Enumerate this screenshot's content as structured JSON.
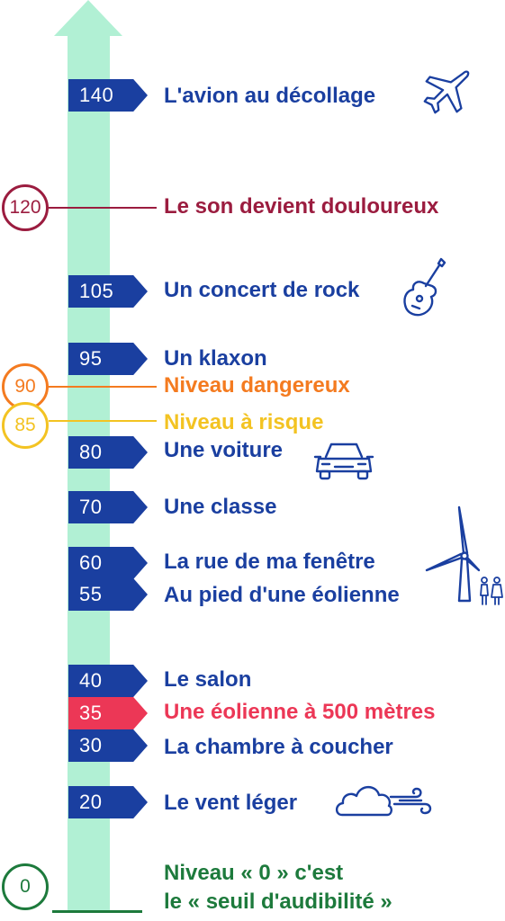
{
  "colors": {
    "arrow": "#b1f0d4",
    "blue": "#1a3fa0",
    "red": "#ec3756",
    "maroon": "#9b1c3f",
    "orange": "#f47b20",
    "yellow": "#f3c322",
    "green": "#1d7a3c"
  },
  "levels": [
    {
      "value": "140",
      "label": "L'avion au décollage",
      "icon": "airplane-icon"
    },
    {
      "value": "105",
      "label": "Un concert de rock",
      "icon": "guitar-icon"
    },
    {
      "value": "95",
      "label": "Un klaxon"
    },
    {
      "value": "80",
      "label": "Une voiture",
      "icon": "car-icon"
    },
    {
      "value": "70",
      "label": "Une classe"
    },
    {
      "value": "60",
      "label": "La rue de ma fenêtre",
      "icon": "wind-turbine-icon"
    },
    {
      "value": "55",
      "label": "Au pied d'une éolienne",
      "icon": "people-icon"
    },
    {
      "value": "40",
      "label": "Le salon"
    },
    {
      "value": "35",
      "label": "Une éolienne à 500 mètres"
    },
    {
      "value": "30",
      "label": "La chambre à coucher"
    },
    {
      "value": "20",
      "label": "Le vent léger",
      "icon": "cloud-wind-icon"
    }
  ],
  "thresholds": [
    {
      "value": "120",
      "label": "Le son devient douloureux"
    },
    {
      "value": "90",
      "label": "Niveau dangereux"
    },
    {
      "value": "85",
      "label": "Niveau à risque"
    },
    {
      "value": "0",
      "label_line1": "Niveau « 0 » c'est",
      "label_line2": "le « seuil d'audibilité »"
    }
  ]
}
